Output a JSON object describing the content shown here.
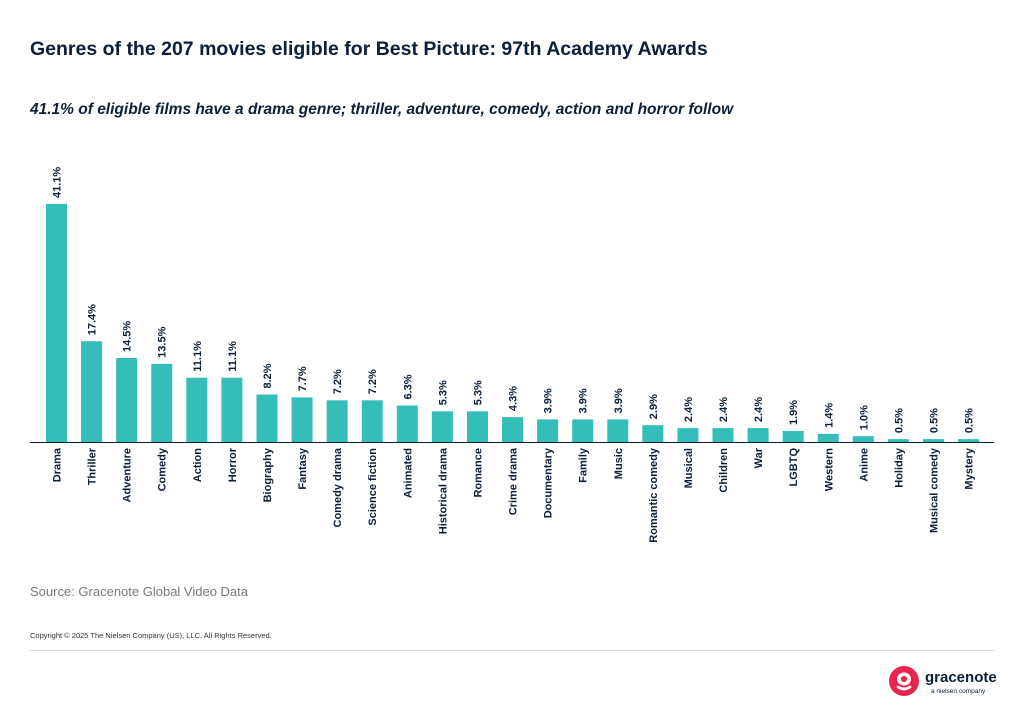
{
  "chart_data": {
    "type": "bar",
    "title": "Genres of the 207 movies eligible for Best Picture: 97th Academy Awards",
    "subtitle": "41.1% of eligible films have a drama genre; thriller, adventure, comedy, action and horror follow",
    "categories": [
      "Drama",
      "Thriller",
      "Adventure",
      "Comedy",
      "Action",
      "Horror",
      "Biography",
      "Fantasy",
      "Comedy drama",
      "Science fiction",
      "Animated",
      "Historical drama",
      "Romance",
      "Crime drama",
      "Documentary",
      "Family",
      "Music",
      "Romantic comedy",
      "Musical",
      "Children",
      "War",
      "LGBTQ",
      "Western",
      "Anime",
      "Holiday",
      "Musical comedy",
      "Mystery"
    ],
    "values": [
      41.1,
      17.4,
      14.5,
      13.5,
      11.1,
      11.1,
      8.2,
      7.7,
      7.2,
      7.2,
      6.3,
      5.3,
      5.3,
      4.3,
      3.9,
      3.9,
      3.9,
      2.9,
      2.4,
      2.4,
      2.4,
      1.9,
      1.4,
      1.0,
      0.5,
      0.5,
      0.5
    ],
    "data_labels": [
      "41.1%",
      "17.4%",
      "14.5%",
      "13.5%",
      "11.1%",
      "11.1%",
      "8.2%",
      "7.7%",
      "7.2%",
      "7.2%",
      "6.3%",
      "5.3%",
      "5.3%",
      "4.3%",
      "3.9%",
      "3.9%",
      "3.9%",
      "2.9%",
      "2.4%",
      "2.4%",
      "2.4%",
      "1.9%",
      "1.4%",
      "1.0%",
      "0.5%",
      "0.5%",
      "0.5%"
    ],
    "xlabel": "",
    "ylabel": "",
    "ylim": [
      0,
      41.1
    ],
    "grid": false,
    "legend": "none",
    "bar_color": "#35bdb9",
    "axis_color": "#0b1f3a"
  },
  "footer": {
    "source": "Source: Gracenote Global Video Data",
    "copyright": "Copyright © 2025 The Nielsen Company (US), LLC. All Rights Reserved."
  },
  "logo": {
    "name": "gracenote",
    "tagline": "a nielsen company",
    "color": "#e8254f"
  }
}
